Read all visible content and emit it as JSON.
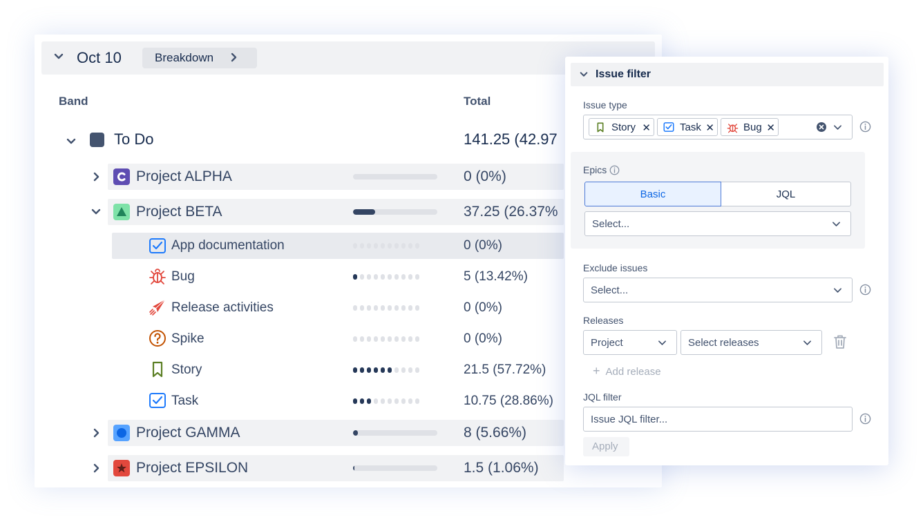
{
  "report": {
    "date": "Oct 10",
    "breakdown_label": "Breakdown",
    "columns": {
      "band": "Band",
      "total": "Total"
    },
    "group": {
      "label": "To Do",
      "value": "141.25 (42.97"
    },
    "projects": [
      {
        "label": "Project ALPHA",
        "value": "0 (0%)",
        "progress": 0
      },
      {
        "label": "Project BETA",
        "value": "37.25 (26.37%",
        "progress": 0.26
      },
      {
        "label": "Project GAMMA",
        "value": "8 (5.66%)",
        "progress": 0.06
      },
      {
        "label": "Project EPSILON",
        "value": "1.5 (1.06%)",
        "progress": 0.01
      }
    ],
    "issue_types": [
      {
        "label": "App documentation",
        "value": "0 (0%)",
        "dots_on": 0,
        "icon": "checkbox-icon"
      },
      {
        "label": "Bug",
        "value": "5 (13.42%)",
        "dots_on": 1,
        "icon": "bug-icon"
      },
      {
        "label": "Release activities",
        "value": "0 (0%)",
        "dots_on": 0,
        "icon": "paper-plane-icon"
      },
      {
        "label": "Spike",
        "value": "0 (0%)",
        "dots_on": 0,
        "icon": "question-icon"
      },
      {
        "label": "Story",
        "value": "21.5 (57.72%)",
        "dots_on": 6,
        "icon": "bookmark-icon"
      },
      {
        "label": "Task",
        "value": "10.75 (28.86%)",
        "dots_on": 3,
        "icon": "checkbox-icon"
      }
    ]
  },
  "filter": {
    "title": "Issue filter",
    "issue_type_label": "Issue type",
    "chips": [
      "Story",
      "Task",
      "Bug"
    ],
    "epics_label": "Epics",
    "epics_tabs": {
      "basic": "Basic",
      "jql": "JQL"
    },
    "epics_placeholder": "Select...",
    "exclude_label": "Exclude issues",
    "exclude_placeholder": "Select...",
    "releases_label": "Releases",
    "releases_project": "Project",
    "releases_select": "Select releases",
    "add_release": "Add release",
    "jql_label": "JQL filter",
    "jql_placeholder": "Issue JQL filter...",
    "apply": "Apply"
  },
  "colors": {
    "accent": "#0c66e4",
    "alpha": "#5e4db2",
    "beta": "#4bce97",
    "gamma": "#1d7afc",
    "epsilon": "#e2483d"
  }
}
